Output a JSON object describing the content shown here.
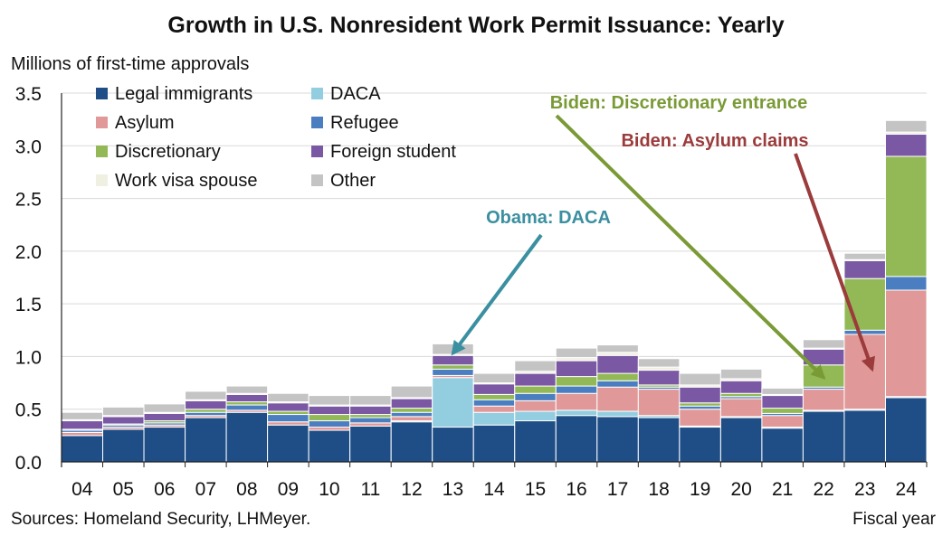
{
  "chart_data": {
    "type": "bar",
    "stacked": true,
    "title": "Growth in U.S. Nonresident Work Permit Issuance: Yearly",
    "ylabel": "Millions of first-time approvals",
    "xlabel": "Fiscal year",
    "source": "Sources: Homeland Security, LHMeyer.",
    "ylim": [
      0,
      3.5
    ],
    "yticks": [
      "0.0",
      "0.5",
      "1.0",
      "1.5",
      "2.0",
      "2.5",
      "3.0",
      "3.5"
    ],
    "grid": true,
    "legend_position": "top-left",
    "categories": [
      "04",
      "05",
      "06",
      "07",
      "08",
      "09",
      "10",
      "11",
      "12",
      "13",
      "14",
      "15",
      "16",
      "17",
      "18",
      "19",
      "20",
      "21",
      "22",
      "23",
      "24"
    ],
    "series": [
      {
        "name": "Legal immigrants",
        "color": "#1f4e87",
        "values": [
          0.25,
          0.31,
          0.33,
          0.42,
          0.47,
          0.35,
          0.3,
          0.34,
          0.38,
          0.33,
          0.35,
          0.39,
          0.44,
          0.43,
          0.42,
          0.33,
          0.42,
          0.32,
          0.48,
          0.49,
          0.61
        ]
      },
      {
        "name": "DACA",
        "color": "#93cde0",
        "values": [
          0,
          0,
          0,
          0,
          0,
          0,
          0,
          0,
          0.01,
          0.47,
          0.12,
          0.09,
          0.05,
          0.05,
          0.02,
          0.01,
          0.01,
          0.01,
          0.01,
          0.01,
          0.01
        ]
      },
      {
        "name": "Asylum",
        "color": "#e09898",
        "values": [
          0.03,
          0.02,
          0.02,
          0.02,
          0.02,
          0.03,
          0.03,
          0.03,
          0.04,
          0.02,
          0.06,
          0.1,
          0.16,
          0.23,
          0.25,
          0.16,
          0.17,
          0.11,
          0.2,
          0.71,
          1.01
        ]
      },
      {
        "name": "Refugee",
        "color": "#4a7ec0",
        "values": [
          0.02,
          0.02,
          0.02,
          0.03,
          0.05,
          0.07,
          0.06,
          0.05,
          0.04,
          0.06,
          0.06,
          0.07,
          0.07,
          0.06,
          0.02,
          0.03,
          0.02,
          0.02,
          0.02,
          0.04,
          0.13
        ]
      },
      {
        "name": "Discretionary",
        "color": "#92b955",
        "values": [
          0.01,
          0.01,
          0.02,
          0.03,
          0.03,
          0.03,
          0.06,
          0.03,
          0.04,
          0.04,
          0.05,
          0.07,
          0.09,
          0.07,
          0.02,
          0.03,
          0.03,
          0.05,
          0.21,
          0.49,
          1.14
        ]
      },
      {
        "name": "Foreign student",
        "color": "#7a58a3",
        "values": [
          0.08,
          0.07,
          0.07,
          0.08,
          0.07,
          0.08,
          0.08,
          0.08,
          0.09,
          0.09,
          0.1,
          0.12,
          0.15,
          0.17,
          0.14,
          0.15,
          0.12,
          0.12,
          0.15,
          0.17,
          0.21
        ]
      },
      {
        "name": "Work visa spouse",
        "color": "#efefe2",
        "values": [
          0.01,
          0.01,
          0.01,
          0.01,
          0.01,
          0.01,
          0.01,
          0.01,
          0.01,
          0.01,
          0.01,
          0.02,
          0.03,
          0.03,
          0.03,
          0.02,
          0.02,
          0.01,
          0.01,
          0.01,
          0.02
        ]
      },
      {
        "name": "Other",
        "color": "#c4c4c4",
        "values": [
          0.07,
          0.08,
          0.08,
          0.08,
          0.07,
          0.08,
          0.09,
          0.09,
          0.11,
          0.1,
          0.09,
          0.1,
          0.09,
          0.07,
          0.08,
          0.11,
          0.09,
          0.06,
          0.08,
          0.06,
          0.11
        ]
      }
    ],
    "annotations": [
      {
        "text": "Obama: DACA",
        "color": "#3a8fa0",
        "target_category": "13",
        "target_value": 1.03
      },
      {
        "text": "Biden: Discretionary entrance",
        "color": "#7a9a36",
        "target_category": "22",
        "target_value": 0.8
      },
      {
        "text": "Biden: Asylum claims",
        "color": "#9b3b3b",
        "target_category": "23",
        "target_value": 0.88
      }
    ]
  }
}
